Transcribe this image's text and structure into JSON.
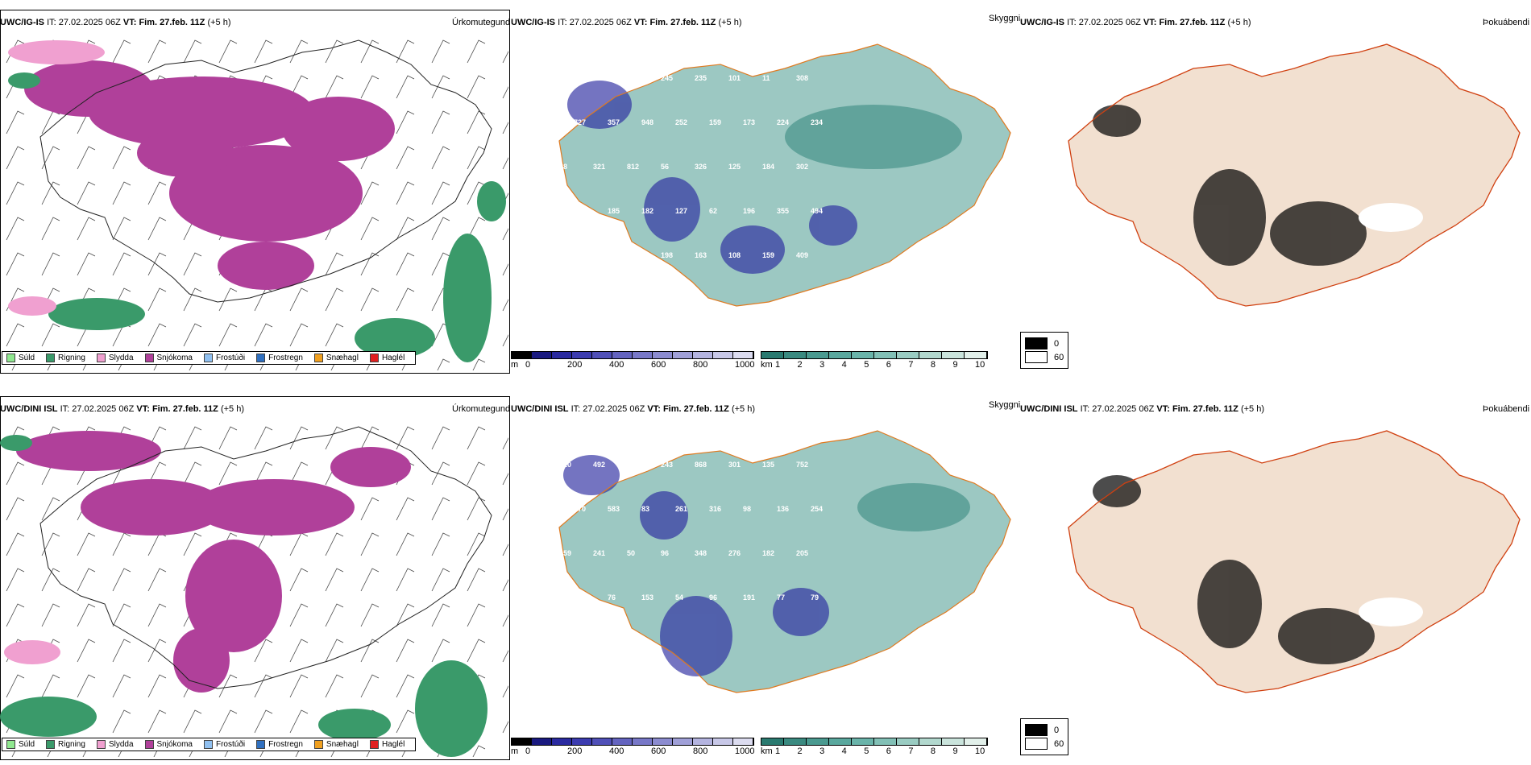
{
  "rows": [
    {
      "model": "UWC/IG-IS",
      "it_label": "IT:",
      "it": "27.02.2025 06Z",
      "vt_label": "VT:",
      "vt": "Fim. 27.feb. 11Z",
      "lead": "(+5 h)",
      "precip_title": "Úrkomutegund",
      "vis_title": "Skyggni",
      "fog_title": "Þokuábendi"
    },
    {
      "model": "UWC/DINI ISL",
      "it_label": "IT:",
      "it": "27.02.2025 06Z",
      "vt_label": "VT:",
      "vt": "Fim. 27.feb. 11Z",
      "lead": "(+5 h)",
      "precip_title": "Úrkomutegund",
      "vis_title": "Skyggni",
      "fog_title": "Þokuábendi"
    }
  ],
  "precip_legend": [
    {
      "label": "Súld",
      "color": "#90e890"
    },
    {
      "label": "Rigning",
      "color": "#3a9a6a"
    },
    {
      "label": "Slydda",
      "color": "#f0a0d0"
    },
    {
      "label": "Snjókoma",
      "color": "#b0409a"
    },
    {
      "label": "Frostúði",
      "color": "#90c0f0"
    },
    {
      "label": "Frostregn",
      "color": "#3070c0"
    },
    {
      "label": "Snæhagl",
      "color": "#f0a020"
    },
    {
      "label": "Haglél",
      "color": "#e02020"
    }
  ],
  "height_bar": {
    "unit": "m",
    "ticks": [
      "0",
      "200",
      "400",
      "600",
      "800",
      "1000"
    ],
    "colors": [
      "#000000",
      "#1a1a80",
      "#2a2aa0",
      "#3c3cb0",
      "#5050b8",
      "#6464c0",
      "#7878c8",
      "#8c8cd0",
      "#a0a0d8",
      "#b4b4e0",
      "#c8c8e8",
      "#dcdcf0"
    ]
  },
  "dist_bar": {
    "unit": "km",
    "ticks": [
      "1",
      "2",
      "3",
      "4",
      "5",
      "6",
      "7",
      "8",
      "9",
      "10"
    ],
    "colors": [
      "#2a7a70",
      "#3a8a80",
      "#4a9a90",
      "#5aa89e",
      "#6ab4aa",
      "#82c0b6",
      "#9accc2",
      "#b2d8ce",
      "#cae4dc",
      "#e2f0ea"
    ]
  },
  "fog_legend": {
    "low": "0",
    "high": "60",
    "low_color": "#000000",
    "high_color": "#ffffff"
  },
  "station_labels_top": [
    "840",
    "1972",
    "140",
    "245",
    "235",
    "101",
    "11",
    "308",
    "727",
    "357",
    "948",
    "252",
    "159",
    "173",
    "224",
    "234",
    "88",
    "321",
    "812",
    "56",
    "326",
    "125",
    "184",
    "302",
    "360",
    "185",
    "182",
    "127",
    "62",
    "196",
    "355",
    "494",
    "401",
    "293",
    "202",
    "198",
    "163",
    "108",
    "159",
    "409"
  ],
  "station_labels_bottom": [
    "920",
    "492",
    "203",
    "243",
    "868",
    "301",
    "135",
    "752",
    "170",
    "583",
    "83",
    "261",
    "316",
    "98",
    "136",
    "254",
    "159",
    "241",
    "50",
    "96",
    "348",
    "276",
    "182",
    "205",
    "166",
    "76",
    "153",
    "54",
    "96",
    "191",
    "77",
    "79",
    "56",
    "259",
    "232"
  ]
}
